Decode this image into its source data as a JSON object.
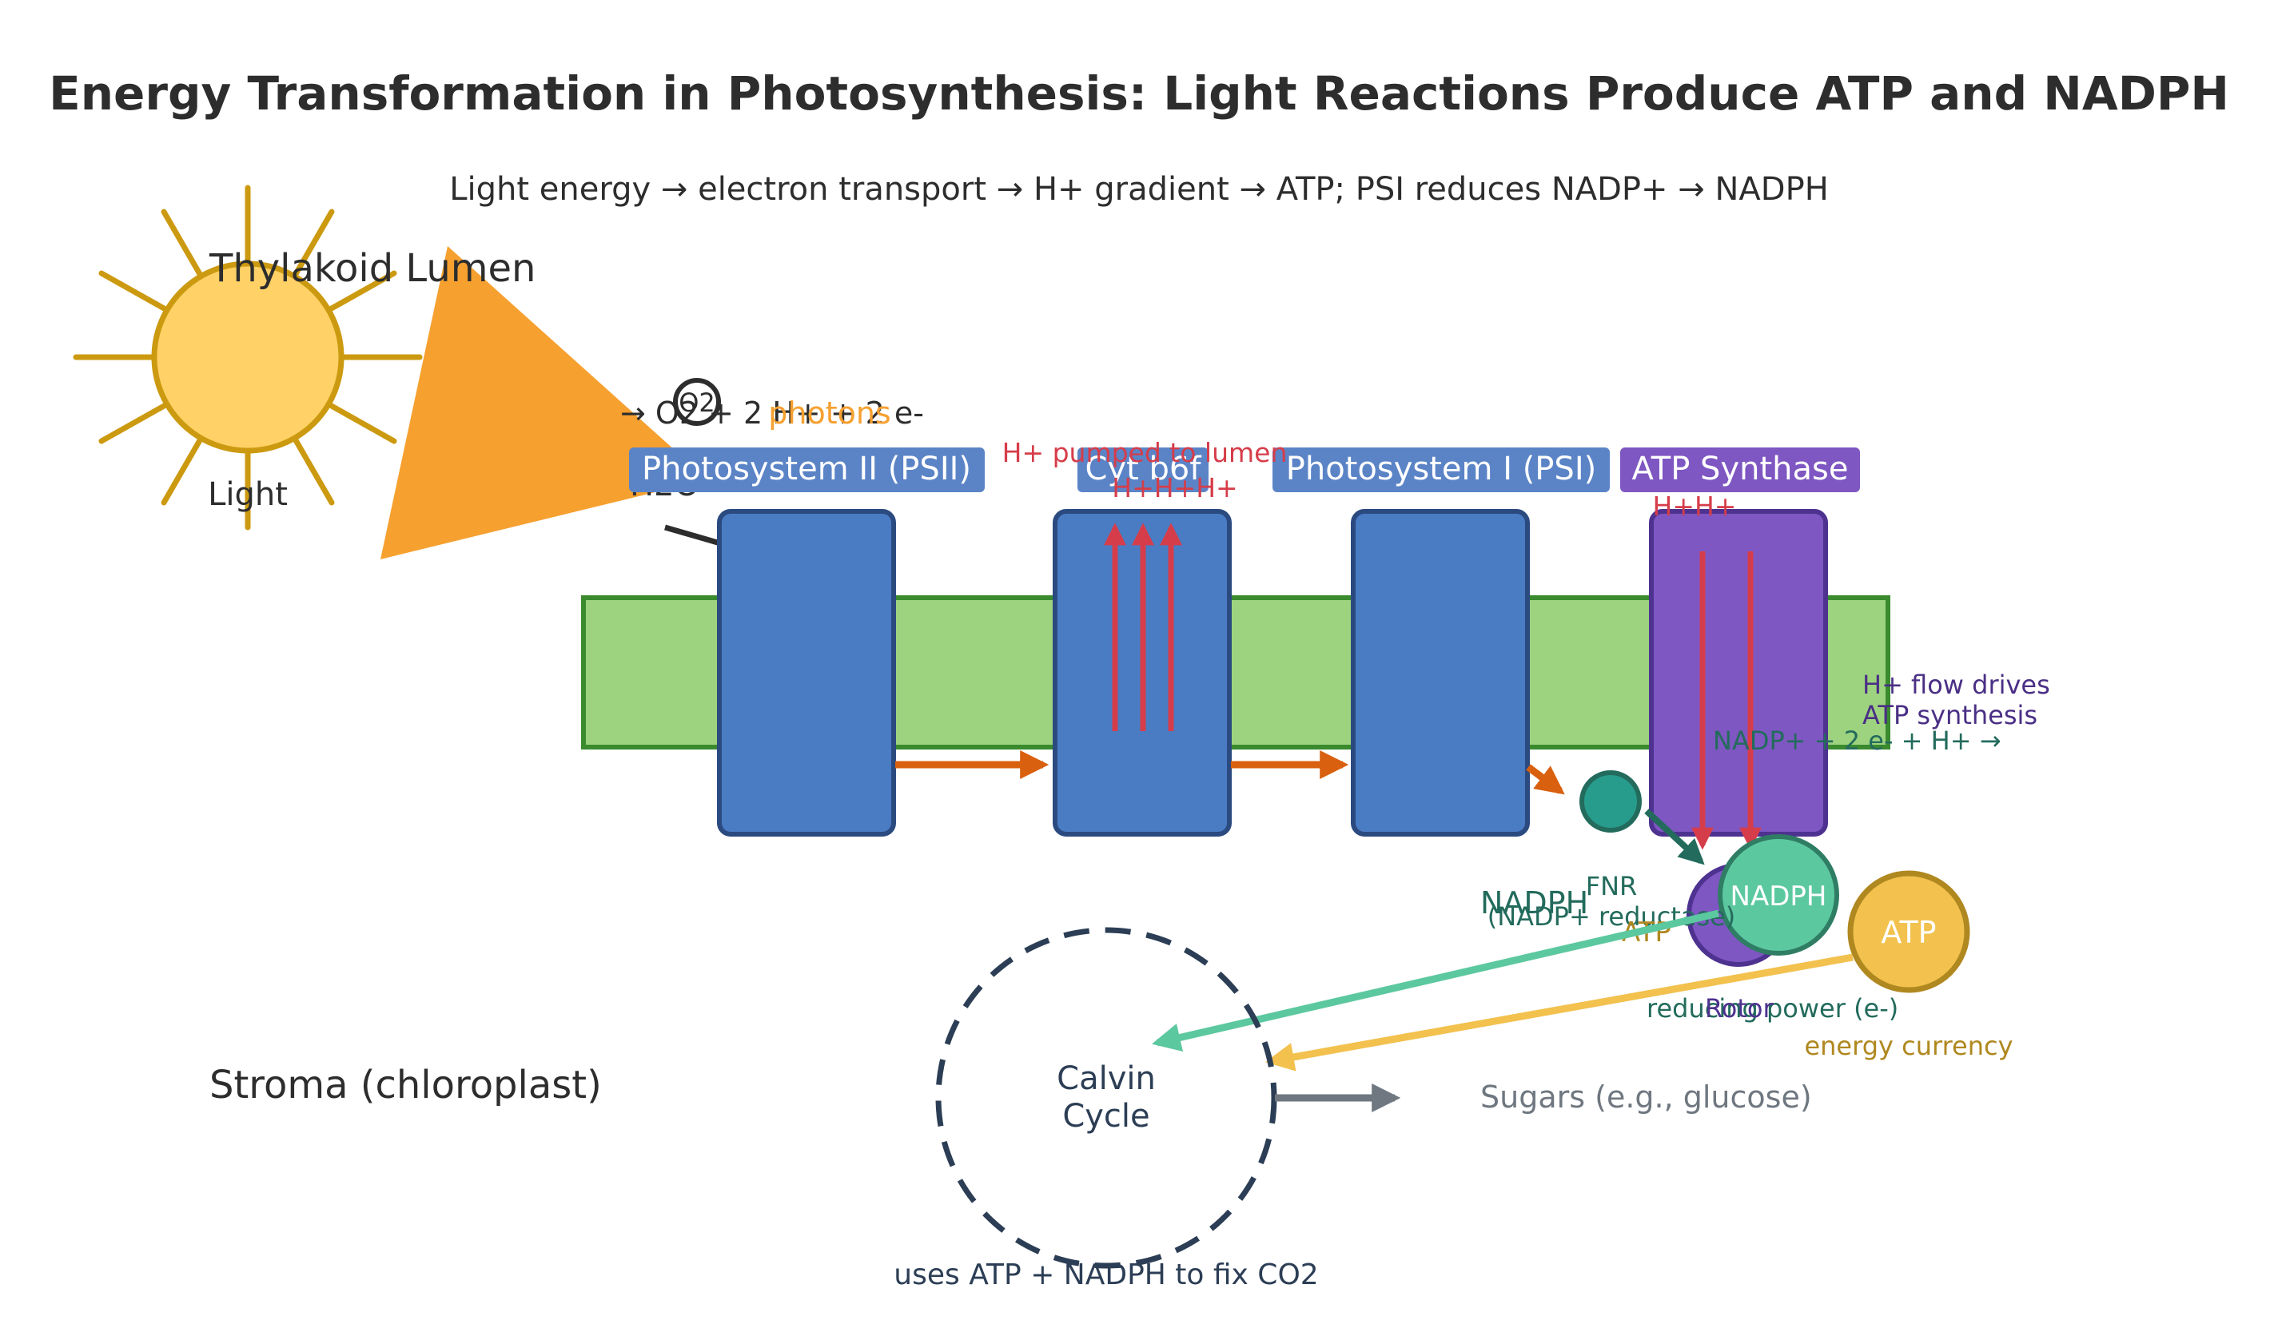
{
  "title": "Energy Transformation in Photosynthesis: Light Reactions Produce ATP and NADPH",
  "subtitle": "Light energy → electron transport → H+ gradient → ATP; PSI reduces NADP+ → NADPH",
  "regions": {
    "lumen": "Thylakoid Lumen",
    "stroma": "Stroma (chloroplast)"
  },
  "sun": {
    "label": "Light",
    "photons_label": "photons"
  },
  "water_split": {
    "input": "H2O",
    "o2_symbol": "O2",
    "equation": "→ O2 + 2 H+ + 2 e-"
  },
  "complexes": {
    "psii": "Photosystem II (PSII)",
    "cyt": "Cyt b6f",
    "psi": "Photosystem I (PSI)",
    "atp_synthase": "ATP Synthase"
  },
  "protons": {
    "pumped_label": "H+ pumped to lumen",
    "cyt_hplus": "H+H+H+",
    "synthase_hplus": "H+H+",
    "flow_label_1": "H+ flow drives",
    "flow_label_2": "ATP synthesis"
  },
  "nadp": {
    "reaction": "NADP+ + 2 e- + H+ →",
    "fnr_1": "FNR",
    "fnr_2": "(NADP+ reductase)",
    "nadph_product": "NADPH",
    "nadph_circle": "NADPH",
    "reducing_power": "reducing power (e-)",
    "rotor": "Rotor"
  },
  "atp": {
    "circle": "ATP",
    "product": "ATP",
    "energy_currency": "energy currency"
  },
  "calvin": {
    "line1": "Calvin",
    "line2": "Cycle",
    "caption": "uses ATP + NADPH to fix CO2",
    "output": "Sugars (e.g., glucose)"
  },
  "colors": {
    "membrane": "#9dd37e",
    "membrane_border": "#3a8a2e",
    "complex": "#4a7cc4",
    "complex_border": "#2b4a80",
    "complex_label_bg": "#5b84c7",
    "synthase": "#7e57c2",
    "synthase_border": "#4e3290",
    "sun_fill": "#ffd166",
    "sun_ray": "#cc9a10",
    "light_beam": "#f6a030",
    "electron_arrow": "#d9600f",
    "proton": "#d63d4a",
    "nadph_green": "#5cc8a0",
    "teal": "#279c8c",
    "atp_gold": "#f2c14e",
    "calvin_border": "#2c3e55",
    "sugar_gray": "#6f7780",
    "dark_text": "#2d2d2d"
  }
}
